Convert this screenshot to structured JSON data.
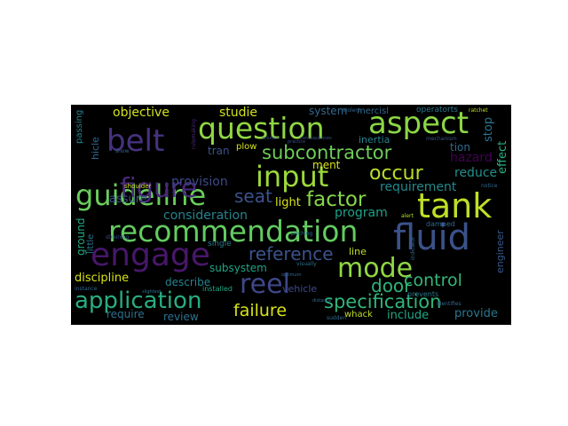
{
  "words": [
    {
      "text": "guideline",
      "color": "#69cd5b"
    },
    {
      "text": "recommendation",
      "color": "#63cb5f"
    },
    {
      "text": "question",
      "color": "#8fd744"
    },
    {
      "text": "aspect",
      "color": "#8bd646"
    },
    {
      "text": "tank",
      "color": "#bddf26"
    },
    {
      "text": "input",
      "color": "#9dd93b"
    },
    {
      "text": "fluid",
      "color": "#3b528b"
    },
    {
      "text": "figure",
      "color": "#482878"
    },
    {
      "text": "belt",
      "color": "#46327e"
    },
    {
      "text": "engage",
      "color": "#481769"
    },
    {
      "text": "reel",
      "color": "#3f4788"
    },
    {
      "text": "mode",
      "color": "#8fd744"
    },
    {
      "text": "application",
      "color": "#27ad81"
    },
    {
      "text": "specification",
      "color": "#31b57b"
    },
    {
      "text": "subcontractor",
      "color": "#6ece58"
    },
    {
      "text": "factor",
      "color": "#86d549"
    },
    {
      "text": "occur",
      "color": "#bade28"
    },
    {
      "text": "reference",
      "color": "#3b528b"
    },
    {
      "text": "control",
      "color": "#35b779"
    },
    {
      "text": "failure",
      "color": "#d8e219"
    },
    {
      "text": "door",
      "color": "#2fb47c"
    },
    {
      "text": "seat",
      "color": "#3b528b"
    },
    {
      "text": "objective",
      "color": "#d2e21b"
    },
    {
      "text": "studie",
      "color": "#d2e21b"
    },
    {
      "text": "system",
      "color": "#31688e"
    },
    {
      "text": "mercisl",
      "color": "#31688e"
    },
    {
      "text": "operatorts",
      "color": "#2a788e"
    },
    {
      "text": "provision",
      "color": "#3e4a89"
    },
    {
      "text": "assure",
      "color": "#3b528b"
    },
    {
      "text": "light",
      "color": "#d8e219"
    },
    {
      "text": "consideration",
      "color": "#25838e"
    },
    {
      "text": "program",
      "color": "#1fa088"
    },
    {
      "text": "requirement",
      "color": "#238a8d"
    },
    {
      "text": "reduce",
      "color": "#21918c"
    },
    {
      "text": "hazard",
      "color": "#440154"
    },
    {
      "text": "effect",
      "color": "#29af7f"
    },
    {
      "text": "stop",
      "color": "#2c728e"
    },
    {
      "text": "inertia",
      "color": "#26828e"
    },
    {
      "text": "tion",
      "color": "#31688e"
    },
    {
      "text": "ment",
      "color": "#d8e219"
    },
    {
      "text": "plow",
      "color": "#d2e21b"
    },
    {
      "text": "tran",
      "color": "#3b528b"
    },
    {
      "text": "subsystem",
      "color": "#20a486"
    },
    {
      "text": "discipline",
      "color": "#d8e219"
    },
    {
      "text": "describe",
      "color": "#25838e"
    },
    {
      "text": "vehicle",
      "color": "#3e4a89"
    },
    {
      "text": "line",
      "color": "#c0df25"
    },
    {
      "text": "require",
      "color": "#2c728e"
    },
    {
      "text": "review",
      "color": "#2c728e"
    },
    {
      "text": "include",
      "color": "#22a884"
    },
    {
      "text": "provide",
      "color": "#2a788e"
    },
    {
      "text": "engineer",
      "color": "#38598c"
    },
    {
      "text": "ground",
      "color": "#22a884"
    },
    {
      "text": "little",
      "color": "#2c728e"
    },
    {
      "text": "hicle",
      "color": "#31688e"
    },
    {
      "text": "passing",
      "color": "#25838e"
    },
    {
      "text": "shoulder",
      "color": "#c8e020"
    },
    {
      "text": "single",
      "color": "#2a788e"
    },
    {
      "text": "installed",
      "color": "#22a884"
    },
    {
      "text": "whack",
      "color": "#c0df25"
    },
    {
      "text": "damped",
      "color": "#31688e"
    },
    {
      "text": "prevents",
      "color": "#2a788e"
    },
    {
      "text": "violent",
      "color": "#31688e"
    },
    {
      "text": "ratchet",
      "color": "#bddf26"
    },
    {
      "text": "notice",
      "color": "#31688e"
    },
    {
      "text": "alert",
      "color": "#b5de2b"
    },
    {
      "text": "pitching",
      "color": "#2c728e"
    },
    {
      "text": "straining",
      "color": "#3b528b"
    },
    {
      "text": "visually",
      "color": "#2c728e"
    },
    {
      "text": "snow",
      "color": "#31688e"
    },
    {
      "text": "rulemaking",
      "color": "#482878"
    },
    {
      "text": "mechanism",
      "color": "#3b528b"
    },
    {
      "text": "indicator",
      "color": "#31688e"
    },
    {
      "text": "distance",
      "color": "#31688e"
    },
    {
      "text": "slightest",
      "color": "#2c728e"
    },
    {
      "text": "sudden",
      "color": "#31688e"
    },
    {
      "text": "identifies",
      "color": "#31688e"
    },
    {
      "text": "practice",
      "color": "#3b528b"
    },
    {
      "text": "optimum",
      "color": "#31688e"
    },
    {
      "text": "instance",
      "color": "#31688e"
    },
    {
      "text": "solution",
      "color": "#3b528b"
    },
    {
      "text": "consequences",
      "color": "#3b528b"
    }
  ]
}
